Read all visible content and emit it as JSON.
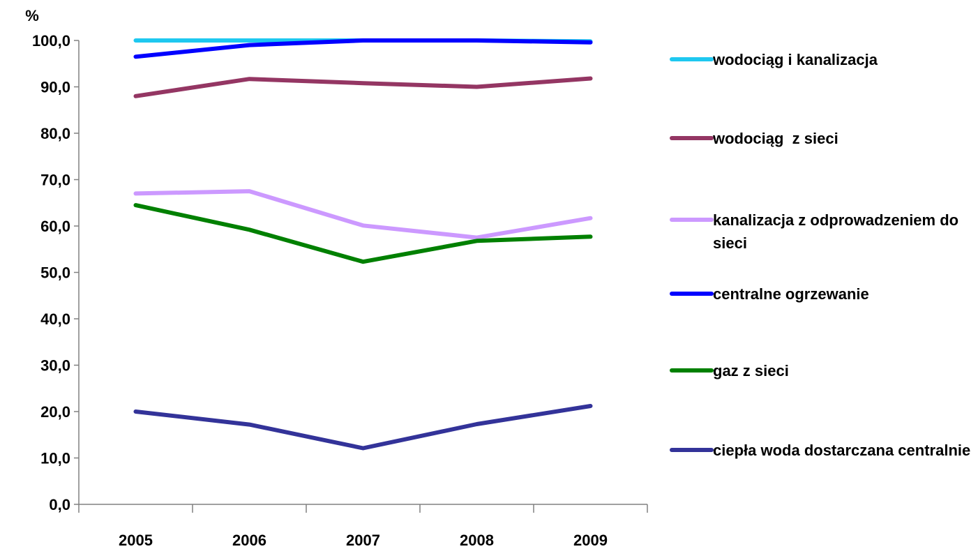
{
  "chart_data": {
    "type": "line",
    "ylabel": "%",
    "ylim": [
      0,
      100
    ],
    "yticks": [
      "0,0",
      "10,0",
      "20,0",
      "30,0",
      "40,0",
      "50,0",
      "60,0",
      "70,0",
      "80,0",
      "90,0",
      "100,0"
    ],
    "categories": [
      "2005",
      "2006",
      "2007",
      "2008",
      "2009"
    ],
    "grid": false,
    "legend_position": "right",
    "series": [
      {
        "name": "wodociąg i kanalizacja",
        "color": "#1EC8F0",
        "values": [
          100.0,
          100.0,
          100.0,
          100.0,
          99.8
        ]
      },
      {
        "name": "wodociąg  z sieci",
        "color": "#943663",
        "values": [
          88.0,
          91.7,
          90.8,
          90.0,
          91.8
        ]
      },
      {
        "name": "kanalizacja z odprowadzeniem do sieci",
        "color": "#CC99FF",
        "values": [
          67.0,
          67.5,
          60.1,
          57.5,
          61.7
        ]
      },
      {
        "name": "centralne ogrzewanie",
        "color": "#0000FF",
        "values": [
          96.5,
          99.0,
          100.0,
          100.0,
          99.6
        ]
      },
      {
        "name": "gaz z sieci",
        "color": "#008000",
        "values": [
          64.5,
          59.2,
          52.3,
          56.8,
          57.7
        ]
      },
      {
        "name": "ciepła woda dostarczana centralnie",
        "color": "#333399",
        "values": [
          20.0,
          17.2,
          12.1,
          17.3,
          21.2
        ]
      }
    ]
  }
}
